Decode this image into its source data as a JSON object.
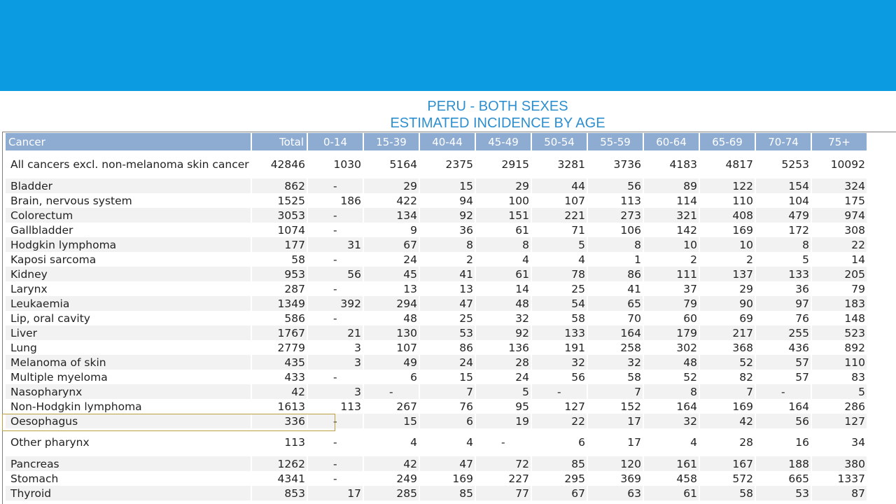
{
  "title_line1": "PERU - BOTH SEXES",
  "title_line2": "ESTIMATED INCIDENCE BY AGE",
  "headers": [
    "Cancer",
    "Total",
    "0-14",
    "15-39",
    "40-44",
    "45-49",
    "50-54",
    "55-59",
    "60-64",
    "65-69",
    "70-74",
    "75+"
  ],
  "rows": [
    [
      "All cancers excl. non-melanoma skin cancer",
      "42846",
      "1030",
      "5164",
      "2375",
      "2915",
      "3281",
      "3736",
      "4183",
      "4817",
      "5253",
      "10092"
    ],
    [
      "Bladder",
      "862",
      "-",
      "29",
      "15",
      "29",
      "44",
      "56",
      "89",
      "122",
      "154",
      "324"
    ],
    [
      "Brain, nervous system",
      "1525",
      "186",
      "422",
      "94",
      "100",
      "107",
      "113",
      "114",
      "110",
      "104",
      "175"
    ],
    [
      "Colorectum",
      "3053",
      "-",
      "134",
      "92",
      "151",
      "221",
      "273",
      "321",
      "408",
      "479",
      "974"
    ],
    [
      "Gallbladder",
      "1074",
      "-",
      "9",
      "36",
      "61",
      "71",
      "106",
      "142",
      "169",
      "172",
      "308"
    ],
    [
      "Hodgkin lymphoma",
      "177",
      "31",
      "67",
      "8",
      "8",
      "5",
      "8",
      "10",
      "10",
      "8",
      "22"
    ],
    [
      "Kaposi sarcoma",
      "58",
      "-",
      "24",
      "2",
      "4",
      "4",
      "1",
      "2",
      "2",
      "5",
      "14"
    ],
    [
      "Kidney",
      "953",
      "56",
      "45",
      "41",
      "61",
      "78",
      "86",
      "111",
      "137",
      "133",
      "205"
    ],
    [
      "Larynx",
      "287",
      "-",
      "13",
      "13",
      "14",
      "25",
      "41",
      "37",
      "29",
      "36",
      "79"
    ],
    [
      "Leukaemia",
      "1349",
      "392",
      "294",
      "47",
      "48",
      "54",
      "65",
      "79",
      "90",
      "97",
      "183"
    ],
    [
      "Lip, oral cavity",
      "586",
      "-",
      "48",
      "25",
      "32",
      "58",
      "70",
      "60",
      "69",
      "76",
      "148"
    ],
    [
      "Liver",
      "1767",
      "21",
      "130",
      "53",
      "92",
      "133",
      "164",
      "179",
      "217",
      "255",
      "523"
    ],
    [
      "Lung",
      "2779",
      "3",
      "107",
      "86",
      "136",
      "191",
      "258",
      "302",
      "368",
      "436",
      "892"
    ],
    [
      "Melanoma of skin",
      "435",
      "3",
      "49",
      "24",
      "28",
      "32",
      "32",
      "48",
      "52",
      "57",
      "110"
    ],
    [
      "Multiple myeloma",
      "433",
      "-",
      "6",
      "15",
      "24",
      "56",
      "58",
      "52",
      "82",
      "57",
      "83"
    ],
    [
      "Nasopharynx",
      "42",
      "3",
      "-",
      "7",
      "5",
      "-",
      "7",
      "8",
      "7",
      "-",
      "5"
    ],
    [
      "Non-Hodgkin lymphoma",
      "1613",
      "113",
      "267",
      "76",
      "95",
      "127",
      "152",
      "164",
      "169",
      "164",
      "286"
    ],
    [
      "Oesophagus",
      "336",
      "-",
      "15",
      "6",
      "19",
      "22",
      "17",
      "32",
      "42",
      "56",
      "127"
    ],
    [
      "Other pharynx",
      "113",
      "-",
      "4",
      "4",
      "-",
      "6",
      "17",
      "4",
      "28",
      "16",
      "34"
    ],
    [
      "Pancreas",
      "1262",
      "-",
      "42",
      "47",
      "72",
      "85",
      "120",
      "161",
      "167",
      "188",
      "380"
    ],
    [
      "Stomach",
      "4341",
      "-",
      "249",
      "169",
      "227",
      "295",
      "369",
      "458",
      "572",
      "665",
      "1337"
    ],
    [
      "Thyroid",
      "853",
      "17",
      "285",
      "85",
      "77",
      "67",
      "63",
      "61",
      "58",
      "53",
      "87"
    ]
  ],
  "colors": {
    "banner": "#0a9be0",
    "title": "#2e8fcf",
    "header_bg": "#8eacd2",
    "row_alt": "#f2f2f2",
    "highlight_border": "#b8a040"
  }
}
